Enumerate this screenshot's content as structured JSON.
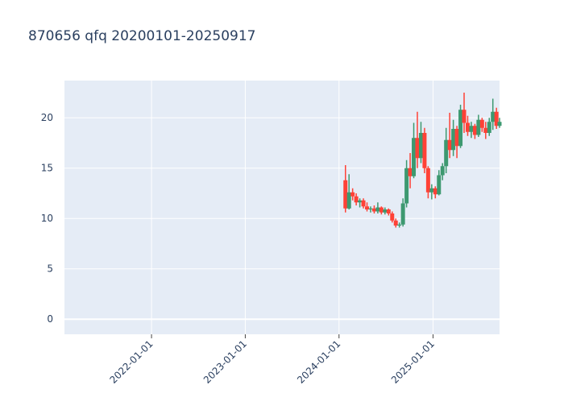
{
  "chart_data": {
    "type": "candlestick",
    "title": "870656 qfq 20200101-20250917",
    "x": [
      "2024-01-26",
      "2024-02-09",
      "2024-02-23",
      "2024-03-08",
      "2024-03-22",
      "2024-04-05",
      "2024-04-19",
      "2024-05-03",
      "2024-05-17",
      "2024-05-31",
      "2024-06-14",
      "2024-06-28",
      "2024-07-12",
      "2024-07-26",
      "2024-08-09",
      "2024-08-23",
      "2024-09-06",
      "2024-09-20",
      "2024-10-04",
      "2024-10-18",
      "2024-11-01",
      "2024-11-15",
      "2024-11-29",
      "2024-12-13",
      "2024-12-27",
      "2025-01-10",
      "2025-01-24",
      "2025-02-07",
      "2025-02-21",
      "2025-03-07",
      "2025-03-21",
      "2025-04-04",
      "2025-04-18",
      "2025-05-02",
      "2025-05-16",
      "2025-05-30",
      "2025-06-13",
      "2025-06-27",
      "2025-07-11",
      "2025-07-25",
      "2025-08-08",
      "2025-08-22",
      "2025-09-05",
      "2025-09-17"
    ],
    "open": [
      13.8,
      11.0,
      12.6,
      12.2,
      11.6,
      11.8,
      11.2,
      10.9,
      11.0,
      10.7,
      11.1,
      10.6,
      10.9,
      10.5,
      9.8,
      9.3,
      9.4,
      11.5,
      15.0,
      14.2,
      18.0,
      16.0,
      18.5,
      15.0,
      12.6,
      13.0,
      12.4,
      14.3,
      15.2,
      17.8,
      16.8,
      18.9,
      17.2,
      20.8,
      19.5,
      18.6,
      19.2,
      18.3,
      19.8,
      19.0,
      18.5,
      19.6,
      20.6,
      19.2
    ],
    "high": [
      15.3,
      14.4,
      13.0,
      12.5,
      12.0,
      12.0,
      11.6,
      11.2,
      11.3,
      11.6,
      11.2,
      11.1,
      11.0,
      10.7,
      10.0,
      9.6,
      12.0,
      15.8,
      16.5,
      19.5,
      20.6,
      19.6,
      19.0,
      15.2,
      13.4,
      13.2,
      14.8,
      15.5,
      19.0,
      20.5,
      19.8,
      19.2,
      21.3,
      22.5,
      20.2,
      19.6,
      19.4,
      20.3,
      20.0,
      19.6,
      20.0,
      21.9,
      21.0,
      20.0
    ],
    "low": [
      10.6,
      10.9,
      11.8,
      11.3,
      11.1,
      11.0,
      10.7,
      10.6,
      10.5,
      10.5,
      10.4,
      10.4,
      10.3,
      9.6,
      9.1,
      9.1,
      9.2,
      11.1,
      13.0,
      14.0,
      15.0,
      15.5,
      14.5,
      12.0,
      11.9,
      12.0,
      12.3,
      13.8,
      14.5,
      16.0,
      16.2,
      16.0,
      17.0,
      18.5,
      18.2,
      18.0,
      17.9,
      18.1,
      18.6,
      17.9,
      18.2,
      18.8,
      18.9,
      19.0
    ],
    "close": [
      11.0,
      12.6,
      12.2,
      11.6,
      11.8,
      11.2,
      10.9,
      11.0,
      10.7,
      11.1,
      10.6,
      10.9,
      10.5,
      9.8,
      9.3,
      9.4,
      11.5,
      15.0,
      14.2,
      18.0,
      16.0,
      18.5,
      15.0,
      12.6,
      13.0,
      12.4,
      14.3,
      15.2,
      17.8,
      16.8,
      18.9,
      17.2,
      20.8,
      19.5,
      18.6,
      19.2,
      18.3,
      19.8,
      19.0,
      18.5,
      19.6,
      20.6,
      19.2,
      19.6
    ],
    "increasing_color": "#3D9970",
    "decreasing_color": "#FF4136",
    "xlim": [
      "2021-01-27",
      "2025-09-17"
    ],
    "xticks": [
      "2022-01-01",
      "2023-01-01",
      "2024-01-01",
      "2025-01-01"
    ],
    "ylim": [
      -1.5,
      23.7
    ],
    "yticks": [
      0,
      5,
      10,
      15,
      20
    ],
    "grid": true
  }
}
